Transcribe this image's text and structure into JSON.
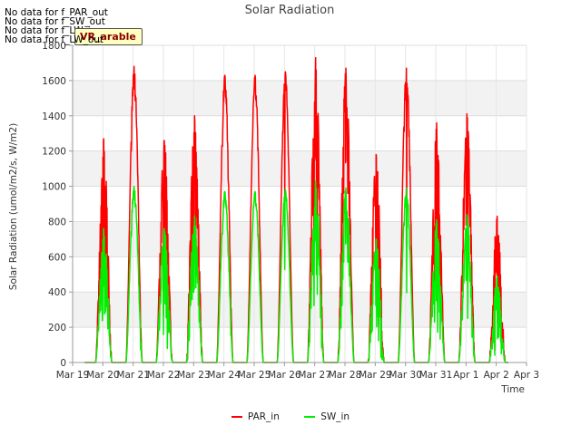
{
  "title": "Solar Radiation",
  "no_data_notes": [
    "No data for f_PAR_out",
    "No data for f_SW_out",
    "No data for f_LW_in",
    "No data for f_LW_out"
  ],
  "tag_label": "VR_arable",
  "chart_data": {
    "type": "line",
    "title": "Solar Radiation",
    "xlabel": "Time",
    "ylabel": "Solar Radiation (umol/m2/s, W/m2)",
    "x_range_days": [
      0,
      15
    ],
    "ylim": [
      0,
      1800
    ],
    "yticks": [
      0,
      200,
      400,
      600,
      800,
      1000,
      1200,
      1400,
      1600,
      1800
    ],
    "xticks": [
      "Mar 19",
      "Mar 20",
      "Mar 21",
      "Mar 22",
      "Mar 23",
      "Mar 24",
      "Mar 25",
      "Mar 26",
      "Mar 27",
      "Mar 28",
      "Mar 29",
      "Mar 30",
      "Mar 31",
      "Apr 1",
      "Apr 2",
      "Apr 3"
    ],
    "grid": "horizontal bands",
    "legend_position": "bottom-center",
    "series": [
      {
        "name": "PAR_in",
        "color": "#ff0000",
        "daily_peak": [
          1270,
          1680,
          1260,
          1400,
          1630,
          1630,
          1650,
          1730,
          1670,
          1180,
          1670,
          1360,
          1410,
          830
        ],
        "daily_shape": [
          "cloudy",
          "clear",
          "cloudy",
          "cloudy",
          "clear",
          "clear",
          "clear",
          "spiky",
          "spiky",
          "very_cloudy",
          "clear",
          "cloudy",
          "spiky",
          "very_cloudy"
        ]
      },
      {
        "name": "SW_in",
        "color": "#00ee00",
        "daily_peak": [
          760,
          1000,
          760,
          830,
          970,
          970,
          980,
          1030,
          990,
          700,
          990,
          810,
          840,
          490
        ],
        "daily_shape": [
          "cloudy",
          "clear",
          "cloudy",
          "cloudy",
          "clear",
          "clear",
          "clear",
          "spiky",
          "spiky",
          "very_cloudy",
          "clear",
          "cloudy",
          "spiky",
          "very_cloudy"
        ]
      }
    ]
  }
}
